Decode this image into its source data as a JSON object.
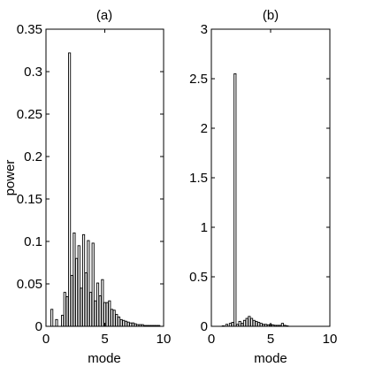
{
  "chart_data": [
    {
      "type": "bar",
      "title": "(a)",
      "xlabel": "mode",
      "ylabel": "power",
      "xlim": [
        0,
        10
      ],
      "ylim": [
        0,
        0.35
      ],
      "xticks": [
        0,
        5,
        10
      ],
      "xtick_labels": [
        "0",
        "5",
        "10"
      ],
      "yticks": [
        0,
        0.05,
        0.1,
        0.15,
        0.2,
        0.25,
        0.3,
        0.35
      ],
      "ytick_labels": [
        "0",
        "0.05",
        "0.1",
        "0.15",
        "0.2",
        "0.25",
        "0.3",
        "0.35"
      ],
      "grid": false,
      "bar_width": 0.17,
      "x": [
        0.5,
        0.9,
        1.4,
        1.6,
        1.8,
        2.0,
        2.2,
        2.4,
        2.6,
        2.8,
        3.0,
        3.2,
        3.4,
        3.6,
        3.8,
        4.0,
        4.2,
        4.4,
        4.6,
        4.8,
        5.0,
        5.2,
        5.4,
        5.6,
        5.8,
        6.0,
        6.2,
        6.4,
        6.6,
        6.8,
        7.0,
        7.2,
        7.4,
        7.6,
        7.8,
        8.0,
        8.2,
        8.4,
        8.6,
        8.8,
        9.0,
        9.2,
        9.4,
        9.6
      ],
      "values": [
        0.02,
        0.008,
        0.013,
        0.04,
        0.035,
        0.322,
        0.06,
        0.11,
        0.08,
        0.095,
        0.045,
        0.108,
        0.063,
        0.101,
        0.04,
        0.098,
        0.03,
        0.051,
        0.036,
        0.055,
        0.028,
        0.028,
        0.03,
        0.02,
        0.019,
        0.014,
        0.011,
        0.008,
        0.007,
        0.006,
        0.005,
        0.004,
        0.004,
        0.003,
        0.002,
        0.002,
        0.002,
        0.001,
        0.001,
        0.001,
        0.001,
        0.001,
        0.001,
        0.001
      ]
    },
    {
      "type": "bar",
      "title": "(b)",
      "xlabel": "mode",
      "ylabel": "",
      "xlim": [
        0,
        10
      ],
      "ylim": [
        0,
        3
      ],
      "xticks": [
        0,
        5,
        10
      ],
      "xtick_labels": [
        "0",
        "5",
        "10"
      ],
      "yticks": [
        0,
        0.5,
        1,
        1.5,
        2,
        2.5,
        3
      ],
      "ytick_labels": [
        "0",
        "0.5",
        "1",
        "1.5",
        "2",
        "2.5",
        "3"
      ],
      "grid": false,
      "bar_width": 0.17,
      "x": [
        1.0,
        1.3,
        1.6,
        1.8,
        2.0,
        2.2,
        2.4,
        2.6,
        2.8,
        3.0,
        3.2,
        3.4,
        3.6,
        3.8,
        4.0,
        4.2,
        4.4,
        4.6,
        4.8,
        5.0,
        5.2,
        5.4,
        5.6,
        5.8,
        6.0,
        6.2,
        6.4
      ],
      "values": [
        0.005,
        0.02,
        0.03,
        0.04,
        2.55,
        0.02,
        0.05,
        0.03,
        0.06,
        0.08,
        0.1,
        0.08,
        0.06,
        0.05,
        0.04,
        0.03,
        0.02,
        0.02,
        0.015,
        0.02,
        0.015,
        0.01,
        0.01,
        0.01,
        0.03,
        0.01,
        0.005
      ]
    }
  ]
}
